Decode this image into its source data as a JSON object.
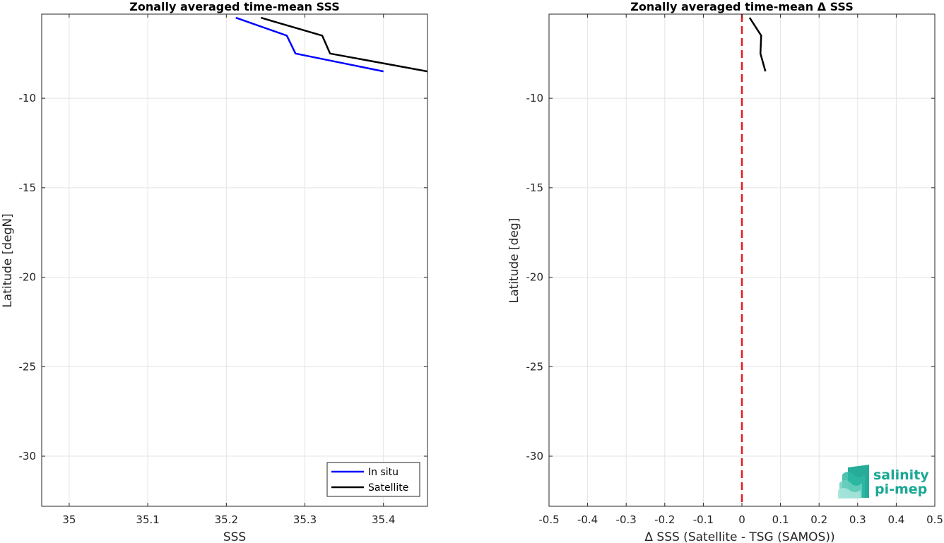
{
  "chart_data": [
    {
      "type": "line",
      "title": "Zonally averaged time-mean SSS",
      "xlabel": "SSS",
      "ylabel": "Latitude [degN]",
      "xlim": [
        34.965,
        35.456
      ],
      "ylim": [
        -32.8,
        -5.3
      ],
      "xticks": [
        35,
        35.1,
        35.2,
        35.3,
        35.4
      ],
      "xtick_labels": [
        "35",
        "35.1",
        "35.2",
        "35.3",
        "35.4"
      ],
      "yticks": [
        -10,
        -15,
        -20,
        -25,
        -30
      ],
      "ytick_labels": [
        "-10",
        "-15",
        "-20",
        "-25",
        "-30"
      ],
      "grid": true,
      "legend_position": "bottom-right",
      "series": [
        {
          "name": "In situ",
          "color": "#0000ff",
          "x": [
            35.212,
            35.277,
            35.288,
            35.4
          ],
          "y": [
            -5.5,
            -6.5,
            -7.5,
            -8.5
          ]
        },
        {
          "name": "Satellite",
          "color": "#000000",
          "x": [
            35.244,
            35.322,
            35.332,
            35.456
          ],
          "y": [
            -5.5,
            -6.5,
            -7.5,
            -8.5
          ]
        }
      ]
    },
    {
      "type": "line",
      "title": "Zonally averaged time-mean Δ SSS",
      "xlabel": "Δ SSS (Satellite - TSG (SAMOS))",
      "ylabel": "Latitude [deg]",
      "xlim": [
        -0.5,
        0.5
      ],
      "ylim": [
        -32.8,
        -5.3
      ],
      "xticks": [
        -0.5,
        -0.4,
        -0.3,
        -0.2,
        -0.1,
        0,
        0.1,
        0.2,
        0.3,
        0.4,
        0.5
      ],
      "xtick_labels": [
        "-0.5",
        "-0.4",
        "-0.3",
        "-0.2",
        "-0.1",
        "0",
        "0.1",
        "0.2",
        "0.3",
        "0.4",
        "0.5"
      ],
      "yticks": [
        -10,
        -15,
        -20,
        -25,
        -30
      ],
      "ytick_labels": [
        "-10",
        "-15",
        "-20",
        "-25",
        "-30"
      ],
      "grid": true,
      "reference_line": {
        "x": 0,
        "color": "#e41a1c",
        "style": "dashed"
      },
      "series": [
        {
          "color": "#000000",
          "x": [
            0.02,
            0.05,
            0.048,
            0.061
          ],
          "y": [
            -5.5,
            -6.5,
            -7.5,
            -8.5
          ]
        }
      ]
    }
  ],
  "logo": {
    "line1": "salinity",
    "line2": "pi-mep",
    "color": "#1aa894"
  }
}
